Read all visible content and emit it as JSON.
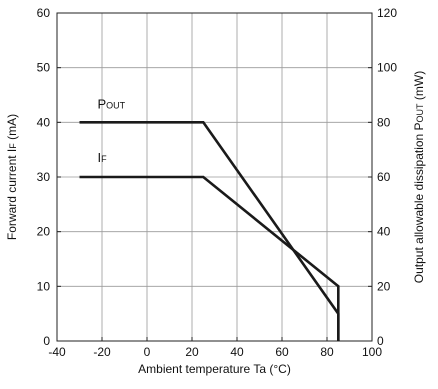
{
  "chart_data": {
    "type": "line",
    "title": "",
    "xlabel": "Ambient temperature Ta (°C)",
    "ylabel_left": {
      "prefix": "Forward current I",
      "sub": "F",
      "suffix": " (mA)"
    },
    "ylabel_right": {
      "prefix": "Output allowable dissipation P",
      "sub": "OUT",
      "suffix": " (mW)"
    },
    "xlim": [
      -40,
      100
    ],
    "ylim_left": [
      0,
      60
    ],
    "ylim_right": [
      0,
      120
    ],
    "x_ticks": [
      -40,
      -20,
      0,
      20,
      40,
      60,
      80,
      100
    ],
    "y_ticks_left": [
      0,
      10,
      20,
      30,
      40,
      50,
      60
    ],
    "y_ticks_right": [
      0,
      20,
      40,
      60,
      80,
      100,
      120
    ],
    "grid": true,
    "series": [
      {
        "name": "IF",
        "label": {
          "main": "I",
          "sub": "F"
        },
        "axis": "left",
        "color": "#1a1a1a",
        "x": [
          -30,
          25,
          85,
          85
        ],
        "y": [
          30,
          30,
          10,
          0
        ]
      },
      {
        "name": "POUT",
        "label": {
          "main": "P",
          "sub": "OUT"
        },
        "axis": "right",
        "color": "#1a1a1a",
        "x": [
          -30,
          25,
          85,
          85
        ],
        "y": [
          80,
          80,
          10,
          0
        ]
      }
    ]
  }
}
